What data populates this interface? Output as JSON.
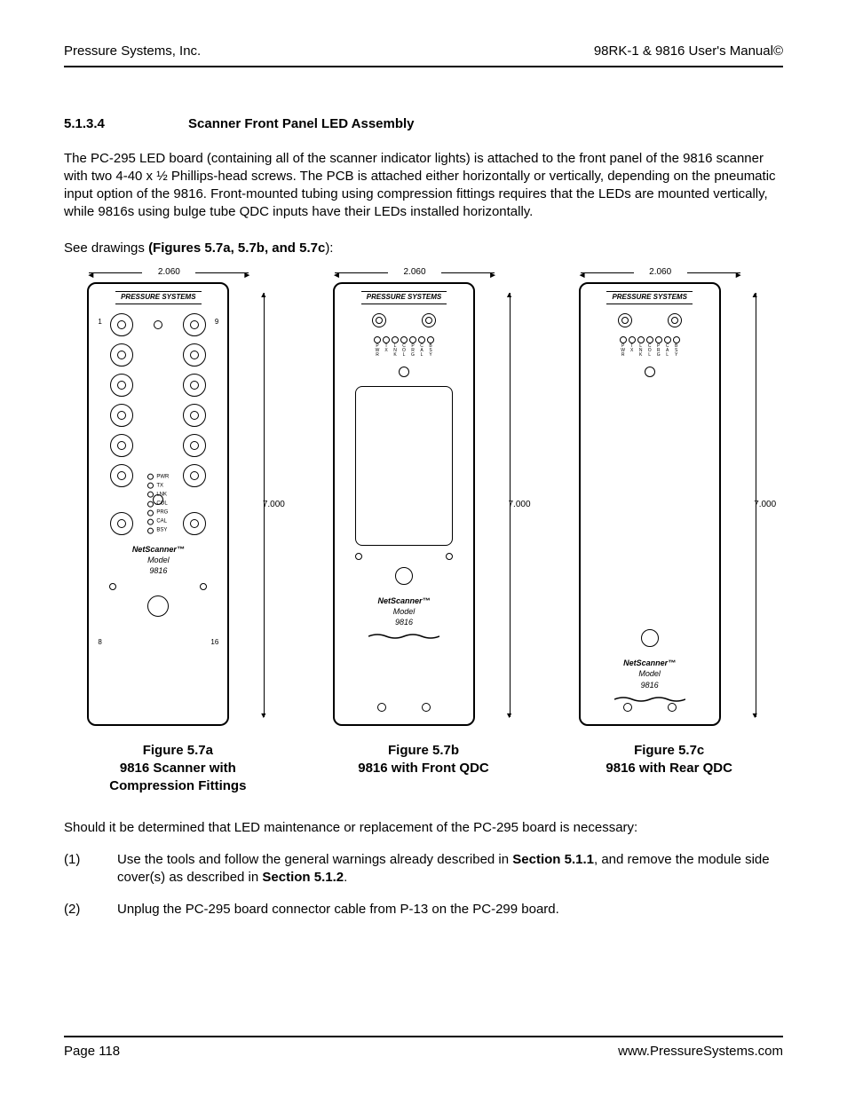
{
  "header": {
    "left": "Pressure Systems, Inc.",
    "right": "98RK-1 & 9816 User's Manual©"
  },
  "section": {
    "num": "5.1.3.4",
    "title": "Scanner  Front Panel LED Assembly"
  },
  "para1": "The  PC-295 LED board (containing all of the scanner indicator lights) is attached to the front panel of the 9816 scanner with two 4-40 x ½ Phillips-head screws.  The PCB is attached either horizontally or vertically, depending on the pneumatic input option of the 9816.   Front-mounted tubing using compression fittings requires that the LEDs are mounted vertically, while 9816s using bulge tube QDC inputs have their LEDs installed horizontally.",
  "seeText": "See drawings ",
  "seeBold": "(Figures 5.7a, 5.7b, and 5.7c",
  "seeAfter": "):",
  "dims": {
    "width": "2.060",
    "height": "7.000"
  },
  "brand": "PRESSURE SYSTEMS",
  "leds": [
    "PWR",
    "TX",
    "LNK",
    "COL",
    "PRG",
    "CAL",
    "BSY"
  ],
  "ledsShort": [
    "P\nW\nR",
    "T\nX",
    "L\nN\nK",
    "C\nO\nL",
    "P\nR\nG",
    "C\nA\nL",
    "B\nS\nY"
  ],
  "modelText": {
    "line1": "NetScanner™",
    "line2": "Model",
    "line3": "9816"
  },
  "panelA": {
    "numTL": "1",
    "numTR": "9",
    "numBL": "8",
    "numBR": "16"
  },
  "captions": {
    "a": {
      "l1": "Figure 5.7a",
      "l2": "9816 Scanner with",
      "l3": "Compression Fittings"
    },
    "b": {
      "l1": "Figure 5.7b",
      "l2": "9816 with Front QDC"
    },
    "c": {
      "l1": "Figure 5.7c",
      "l2": "9816 with Rear QDC"
    }
  },
  "para2": "Should it be determined that LED maintenance or replacement of the PC-295 board is necessary:",
  "steps": {
    "s1": {
      "n": "(1)",
      "pre": "Use the tools and follow the general warnings already described in ",
      "b1": "Section 5.1.1",
      "mid": ", and remove the module side cover(s) as described in ",
      "b2": "Section 5.1.2",
      "post": "."
    },
    "s2": {
      "n": "(2)",
      "t": "Unplug the PC-295 board connector cable from P-13 on the PC-299 board."
    }
  },
  "footer": {
    "left": "Page 118",
    "right": "www.PressureSystems.com"
  },
  "colors": {
    "text": "#000000",
    "bg": "#ffffff"
  }
}
